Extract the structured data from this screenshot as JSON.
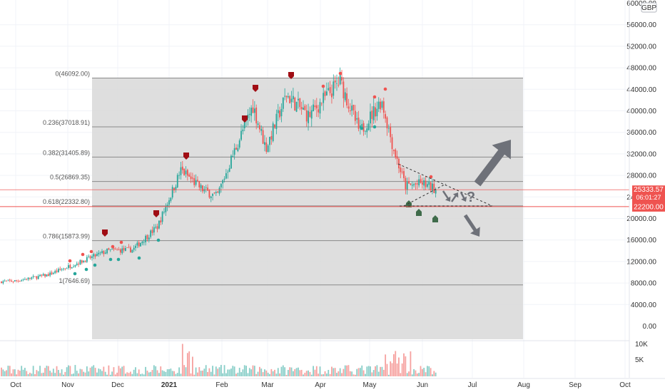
{
  "chart_data": {
    "type": "candlestick",
    "currency": "GBP",
    "y_ticks": [
      "4000.00",
      "8000.00",
      "12000.00",
      "16000.00",
      "20000.00",
      "24000.00",
      "28000.00",
      "32000.00",
      "36000.00",
      "40000.00",
      "44000.00",
      "48000.00",
      "52000.00",
      "56000.00",
      "60000.00"
    ],
    "y_min": -2000,
    "y_max": 61000,
    "x_labels": [
      "Oct",
      "Nov",
      "Dec",
      "2021",
      "Feb",
      "Mar",
      "Apr",
      "May",
      "Jun",
      "Jul",
      "Aug",
      "Sep",
      "Oct"
    ],
    "volume_ticks": [
      "10K",
      "5K"
    ],
    "fib_levels": [
      {
        "label": "0(46092.00)",
        "ratio": "0",
        "value": 46092
      },
      {
        "label": "0.236(37018.91)",
        "ratio": "0.236",
        "value": 37018.91
      },
      {
        "label": "0.382(31405.89)",
        "ratio": "0.382",
        "value": 31405.89
      },
      {
        "label": "0.5(26869.35)",
        "ratio": "0.5",
        "value": 26869.35
      },
      {
        "label": "0.618(22332.80)",
        "ratio": "0.618",
        "value": 22332.8
      },
      {
        "label": "0.786(15873.99)",
        "ratio": "0.786",
        "value": 15873.99
      },
      {
        "label": "1(7646.69)",
        "ratio": "1",
        "value": 7646.69
      }
    ],
    "price_badges": [
      {
        "value": "25333.57",
        "sub": "06:01:27",
        "color": "#ef5350"
      },
      {
        "value": "22200.00",
        "color": "#ef5350"
      }
    ],
    "price_path_anchors": [
      {
        "date": "2020-09-15",
        "price": 8200
      },
      {
        "date": "2020-10-01",
        "price": 8400
      },
      {
        "date": "2020-10-20",
        "price": 9500
      },
      {
        "date": "2020-11-05",
        "price": 11500
      },
      {
        "date": "2020-11-25",
        "price": 14000
      },
      {
        "date": "2020-12-10",
        "price": 14200
      },
      {
        "date": "2020-12-25",
        "price": 18500
      },
      {
        "date": "2021-01-08",
        "price": 29000
      },
      {
        "date": "2021-01-20",
        "price": 25500
      },
      {
        "date": "2021-01-29",
        "price": 24000
      },
      {
        "date": "2021-02-08",
        "price": 32000
      },
      {
        "date": "2021-02-20",
        "price": 41000
      },
      {
        "date": "2021-02-28",
        "price": 33000
      },
      {
        "date": "2021-03-12",
        "price": 43000
      },
      {
        "date": "2021-03-25",
        "price": 39000
      },
      {
        "date": "2021-04-13",
        "price": 45500
      },
      {
        "date": "2021-04-25",
        "price": 36000
      },
      {
        "date": "2021-05-08",
        "price": 42000
      },
      {
        "date": "2021-05-15",
        "price": 33000
      },
      {
        "date": "2021-05-22",
        "price": 26000
      },
      {
        "date": "2021-06-01",
        "price": 26500
      },
      {
        "date": "2021-06-10",
        "price": 25300
      }
    ],
    "annotation_text": "?"
  },
  "colors": {
    "up": "#26a69a",
    "down": "#ef5350",
    "fib_area": "#d8d8d8",
    "arrow": "#6e7179"
  }
}
